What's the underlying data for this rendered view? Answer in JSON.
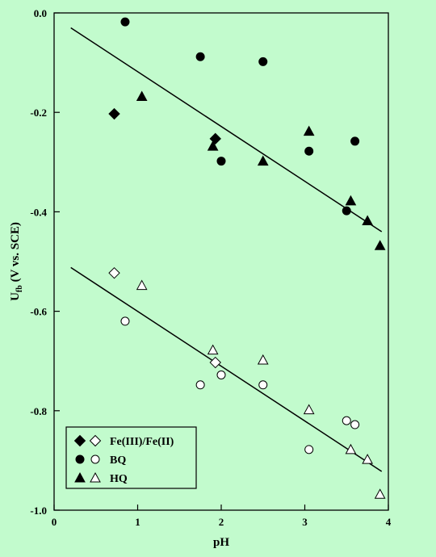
{
  "chart_data": {
    "type": "scatter",
    "background": "#c2fbcd",
    "xlabel": "pH",
    "ylabel_main": "U",
    "ylabel_sub": "fb",
    "ylabel_rest": " (V vs. SCE)",
    "xlim": [
      0,
      4
    ],
    "ylim": [
      -1.0,
      0.0
    ],
    "x_ticks": [
      {
        "value": 0,
        "label": "0"
      },
      {
        "value": 1,
        "label": "1"
      },
      {
        "value": 2,
        "label": "2"
      },
      {
        "value": 3,
        "label": "3"
      },
      {
        "value": 4,
        "label": "4"
      }
    ],
    "y_ticks": [
      {
        "value": 0.0,
        "label": "0.0"
      },
      {
        "value": -0.2,
        "label": "-0.2"
      },
      {
        "value": -0.4,
        "label": "-0.4"
      },
      {
        "value": -0.6,
        "label": "-0.6"
      },
      {
        "value": -0.8,
        "label": "-0.8"
      },
      {
        "value": -1.0,
        "label": "-1.0"
      }
    ],
    "legend_position": "bottom-left",
    "legend": [
      {
        "label": "Fe(III)/Fe(II)",
        "marker": "diamond"
      },
      {
        "label": "BQ",
        "marker": "circle"
      },
      {
        "label": "HQ",
        "marker": "triangle"
      }
    ],
    "series": [
      {
        "marker": "diamond",
        "filled": true,
        "points": [
          [
            0.72,
            -0.203
          ],
          [
            1.93,
            -0.253
          ]
        ]
      },
      {
        "marker": "circle",
        "filled": true,
        "points": [
          [
            0.85,
            -0.018
          ],
          [
            1.75,
            -0.088
          ],
          [
            2.0,
            -0.298
          ],
          [
            2.5,
            -0.098
          ],
          [
            3.05,
            -0.278
          ],
          [
            3.5,
            -0.398
          ],
          [
            3.6,
            -0.258
          ]
        ]
      },
      {
        "marker": "triangle",
        "filled": true,
        "points": [
          [
            1.05,
            -0.168
          ],
          [
            1.9,
            -0.268
          ],
          [
            2.5,
            -0.298
          ],
          [
            3.05,
            -0.238
          ],
          [
            3.55,
            -0.378
          ],
          [
            3.75,
            -0.418
          ],
          [
            3.9,
            -0.468
          ]
        ]
      },
      {
        "marker": "diamond",
        "filled": false,
        "points": [
          [
            0.72,
            -0.523
          ],
          [
            1.93,
            -0.703
          ]
        ]
      },
      {
        "marker": "circle",
        "filled": false,
        "points": [
          [
            0.85,
            -0.62
          ],
          [
            1.75,
            -0.748
          ],
          [
            2.0,
            -0.728
          ],
          [
            2.5,
            -0.748
          ],
          [
            3.05,
            -0.878
          ],
          [
            3.5,
            -0.82
          ],
          [
            3.6,
            -0.828
          ]
        ]
      },
      {
        "marker": "triangle",
        "filled": false,
        "points": [
          [
            1.05,
            -0.548
          ],
          [
            1.9,
            -0.678
          ],
          [
            2.5,
            -0.698
          ],
          [
            3.05,
            -0.798
          ],
          [
            3.55,
            -0.878
          ],
          [
            3.75,
            -0.898
          ],
          [
            3.9,
            -0.968
          ]
        ]
      }
    ],
    "fit_lines": [
      {
        "x": [
          0.2,
          3.92
        ],
        "y": [
          -0.03,
          -0.44
        ]
      },
      {
        "x": [
          0.2,
          3.92
        ],
        "y": [
          -0.512,
          -0.922
        ]
      }
    ]
  }
}
